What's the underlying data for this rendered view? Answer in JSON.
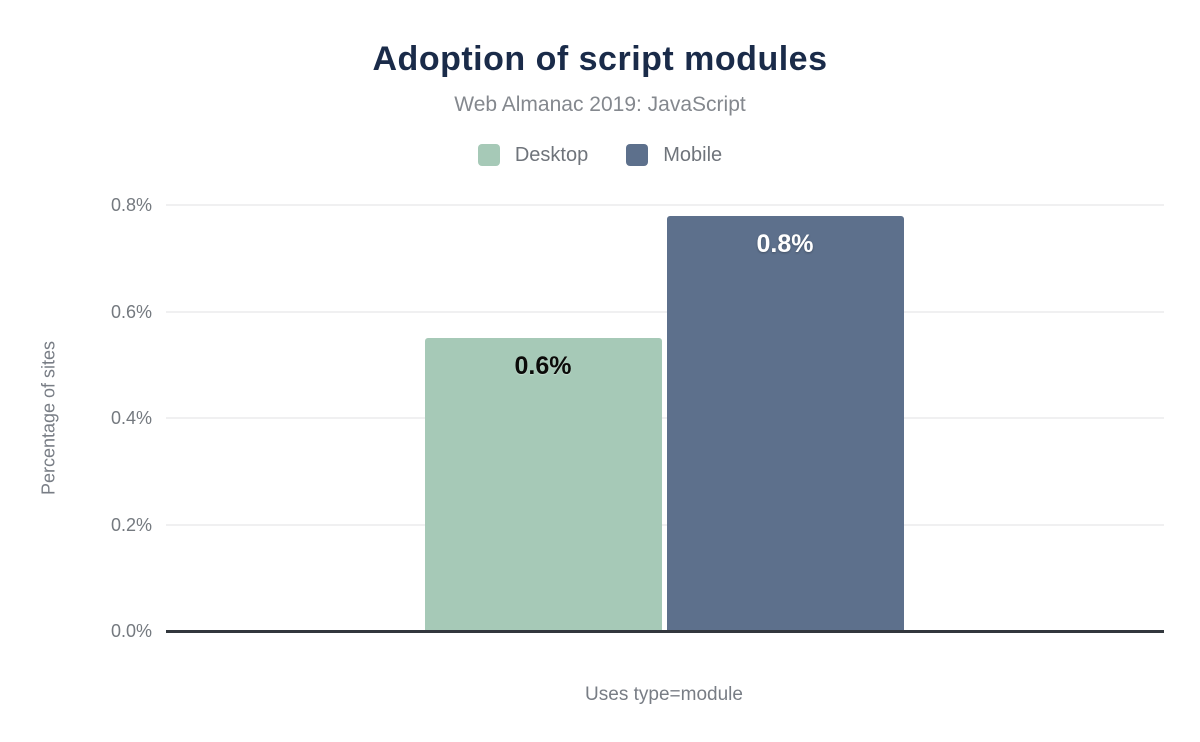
{
  "chart_data": {
    "type": "bar",
    "title": "Adoption of script modules",
    "subtitle": "Web Almanac 2019: JavaScript",
    "categories": [
      "Uses type=module"
    ],
    "series": [
      {
        "name": "Desktop",
        "value": 0.55,
        "data_label": "0.6%",
        "color": "#a6c9b7",
        "data_label_color": "#0b0b09"
      },
      {
        "name": "Mobile",
        "value": 0.78,
        "data_label": "0.8%",
        "color": "#5d708c",
        "data_label_color": "#ffffff"
      }
    ],
    "xlabel": "Uses type=module",
    "ylabel": "Percentage of sites",
    "yticks": [
      {
        "value": 0.0,
        "label": "0.0%"
      },
      {
        "value": 0.2,
        "label": "0.2%"
      },
      {
        "value": 0.4,
        "label": "0.4%"
      },
      {
        "value": 0.6,
        "label": "0.6%"
      },
      {
        "value": 0.8,
        "label": "0.8%"
      }
    ],
    "ylim": [
      0,
      0.8
    ],
    "grid": "horizontal",
    "legend_position": "top-center"
  },
  "colors": {
    "title": "#1a2b49",
    "subtitle": "#84888e",
    "axis_text": "#74797f",
    "gridline": "#f0f0f1",
    "baseline": "#32373d",
    "background": "#ffffff"
  }
}
